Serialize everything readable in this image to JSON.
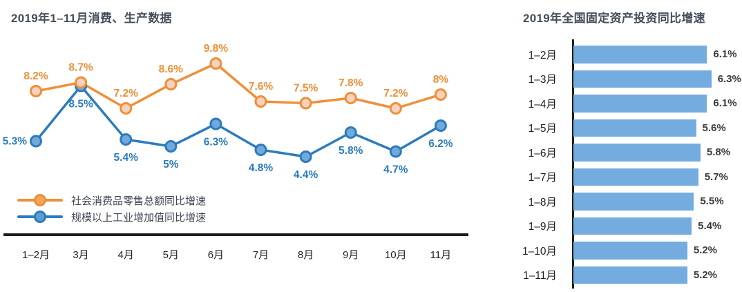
{
  "chart_data": [
    {
      "type": "line",
      "title": "2019年1–11月消费、生产数据",
      "categories": [
        "1–2月",
        "3月",
        "4月",
        "5月",
        "6月",
        "7月",
        "8月",
        "9月",
        "10月",
        "11月"
      ],
      "series": [
        {
          "name": "社会消费品零售总额同比增速",
          "values": [
            8.2,
            8.7,
            7.2,
            8.6,
            9.8,
            7.6,
            7.5,
            7.8,
            7.2,
            8
          ],
          "labels": [
            "8.2%",
            "8.7%",
            "7.2%",
            "8.6%",
            "9.8%",
            "7.6%",
            "7.5%",
            "7.8%",
            "7.2%",
            "8%"
          ],
          "color": "#EF8F38",
          "marker_fill": "#F8D2C0",
          "legend_marker_fill": "#F2A45A"
        },
        {
          "name": "规模以上工业增加值同比增速",
          "values": [
            5.3,
            8.5,
            5.4,
            5,
            6.3,
            4.8,
            4.4,
            5.8,
            4.7,
            6.2
          ],
          "labels": [
            "5.3%",
            "8.5%",
            "5.4%",
            "5%",
            "6.3%",
            "4.8%",
            "4.4%",
            "5.8%",
            "4.7%",
            "6.2%"
          ],
          "color": "#2B7BBE",
          "marker_fill": "#72A9DB",
          "legend_marker_fill": "#5E9CD2"
        }
      ],
      "ylim": [
        4,
        10.5
      ],
      "grid": false,
      "legend_position": "bottom-left",
      "label_format": "percent"
    },
    {
      "type": "bar",
      "orientation": "horizontal",
      "title": "2019年全国固定资产投资同比增速",
      "categories": [
        "1–2月",
        "1–3月",
        "1–4月",
        "1–5月",
        "1–6月",
        "1–7月",
        "1–8月",
        "1–9月",
        "1–10月",
        "1–11月"
      ],
      "values": [
        6.1,
        6.3,
        6.1,
        5.6,
        5.8,
        5.7,
        5.5,
        5.4,
        5.2,
        5.2
      ],
      "labels": [
        "6.1%",
        "6.3%",
        "6.1%",
        "5.6%",
        "5.8%",
        "5.7%",
        "5.5%",
        "5.4%",
        "5.2%",
        "5.2%"
      ],
      "bar_color": "#74ACDF",
      "xlim": [
        0,
        6.6
      ],
      "grid": false
    }
  ],
  "colors": {
    "title": "#454E5B",
    "axis": "#1E1E1E",
    "category_label": "#1F1F1F",
    "value_label": "#3B3B3B",
    "legend_text": "#3F4652",
    "background": "#FFFFFF"
  }
}
